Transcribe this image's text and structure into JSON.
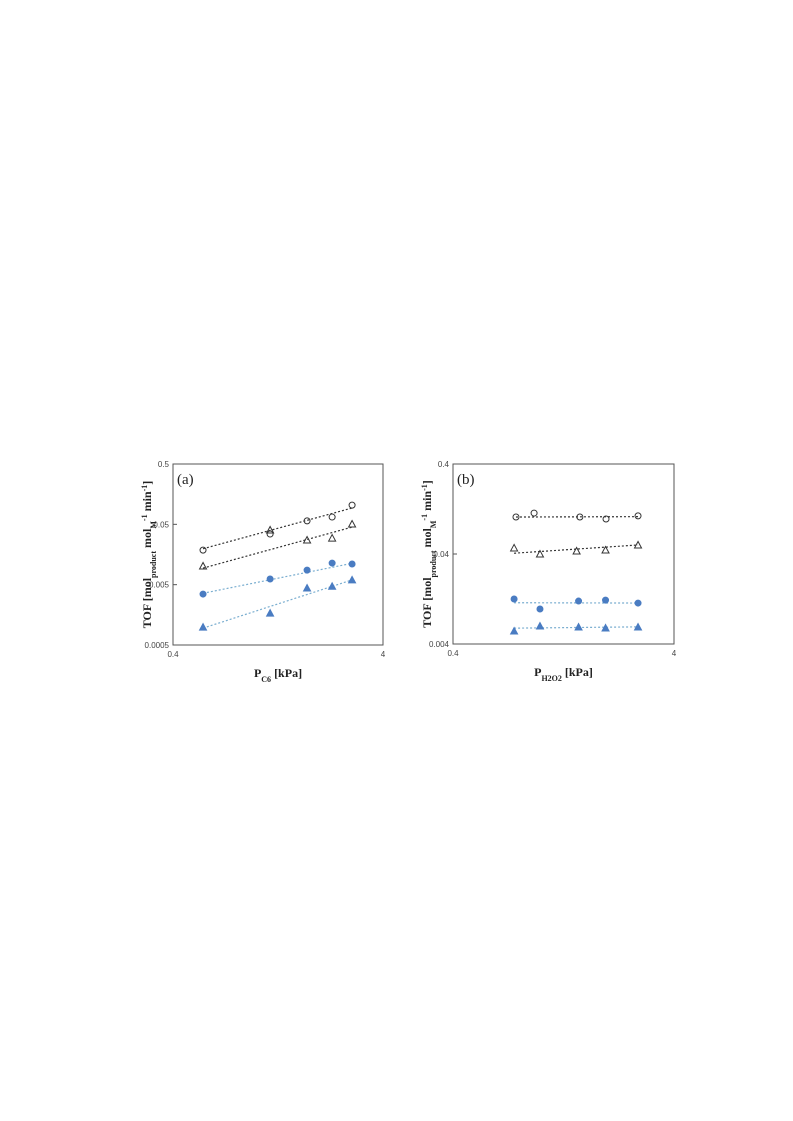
{
  "chart_data": [
    {
      "type": "scatter",
      "annotation": "(a)",
      "log_x": true,
      "log_y": true,
      "xlabel": [
        {
          "text": "P",
          "style": "base"
        },
        {
          "text": "C6",
          "style": "sub"
        },
        {
          "text": " [kPa]",
          "style": "base"
        }
      ],
      "ylabel": [
        {
          "text": "TOF [mol",
          "style": "base"
        },
        {
          "text": "product",
          "style": "sub"
        },
        {
          "text": " mol",
          "style": "base"
        },
        {
          "text": "M",
          "style": "sub"
        },
        {
          "text": "-1",
          "style": "super"
        },
        {
          "text": " min",
          "style": "base"
        },
        {
          "text": "-1",
          "style": "super"
        },
        {
          "text": "]",
          "style": "base"
        }
      ],
      "xlim": [
        0.4,
        4
      ],
      "xticks": [
        0.4,
        4
      ],
      "ylim": [
        0.0005,
        0.5
      ],
      "yticks": [
        0.0005,
        0.005,
        0.05,
        0.5
      ],
      "series": [
        {
          "marker": "circle",
          "filled": false,
          "color": "#333333",
          "x": [
            0.556,
            1.16,
            1.74,
            2.29,
            2.85
          ],
          "values": [
            0.0187,
            0.0345,
            0.057,
            0.066,
            0.104
          ],
          "fit": {
            "color": "#333333",
            "x": [
              0.556,
              2.85
            ],
            "values": [
              0.0197,
              0.0932
            ]
          }
        },
        {
          "marker": "triangle",
          "filled": false,
          "color": "#333333",
          "x": [
            0.556,
            1.16,
            1.74,
            2.29,
            2.85
          ],
          "values": [
            0.0102,
            0.0403,
            0.0275,
            0.0296,
            0.0506
          ],
          "fit": {
            "color": "#333333",
            "x": [
              0.556,
              2.85
            ],
            "values": [
              0.0094,
              0.045
            ]
          }
        },
        {
          "marker": "circle",
          "filled": true,
          "color": "#4a7cc2",
          "x": [
            0.556,
            1.16,
            1.74,
            2.29,
            2.85
          ],
          "values": [
            0.00349,
            0.0062,
            0.0087,
            0.0114,
            0.011
          ],
          "fit": {
            "color": "#7aaed0",
            "x": [
              0.556,
              2.85
            ],
            "values": [
              0.0036,
              0.0113
            ]
          }
        },
        {
          "marker": "triangle",
          "filled": true,
          "color": "#4a7cc2",
          "x": [
            0.556,
            1.16,
            1.74,
            2.29,
            2.85
          ],
          "values": [
            0.00099,
            0.00169,
            0.0044,
            0.0047,
            0.006
          ],
          "fit": {
            "color": "#7aaed0",
            "x": [
              0.556,
              2.85
            ],
            "values": [
              0.00095,
              0.006
            ]
          }
        }
      ]
    },
    {
      "type": "scatter",
      "annotation": "(b)",
      "log_x": true,
      "log_y": true,
      "xlabel": [
        {
          "text": "P",
          "style": "base"
        },
        {
          "text": "H2O2",
          "style": "sub"
        },
        {
          "text": " [kPa]",
          "style": "base"
        }
      ],
      "ylabel": [
        {
          "text": "TOF [mol",
          "style": "base"
        },
        {
          "text": "product",
          "style": "sub"
        },
        {
          "text": " mol",
          "style": "base"
        },
        {
          "text": "M",
          "style": "sub"
        },
        {
          "text": "-1",
          "style": "super"
        },
        {
          "text": " min",
          "style": "base"
        },
        {
          "text": "-1",
          "style": "super"
        },
        {
          "text": "]",
          "style": "base"
        }
      ],
      "xlim": [
        0.4,
        4
      ],
      "xticks": [
        0.4,
        4
      ],
      "ylim": [
        0.004,
        0.4
      ],
      "yticks": [
        0.004,
        0.04,
        0.4
      ],
      "series": [
        {
          "marker": "circle",
          "filled": false,
          "color": "#333333",
          "x": [
            0.771,
            0.931,
            1.5,
            1.97,
            2.75
          ],
          "values": [
            0.103,
            0.114,
            0.103,
            0.098,
            0.106
          ],
          "fit": {
            "color": "#333333",
            "x": [
              0.771,
              2.75
            ],
            "values": [
              0.103,
              0.104
            ]
          }
        },
        {
          "marker": "triangle",
          "filled": false,
          "color": "#333333",
          "x": [
            0.756,
            0.99,
            1.45,
            1.96,
            2.75
          ],
          "values": [
            0.0467,
            0.04,
            0.0432,
            0.0443,
            0.0504
          ],
          "fit": {
            "color": "#333333",
            "x": [
              0.756,
              2.75
            ],
            "values": [
              0.0408,
              0.0504
            ]
          }
        },
        {
          "marker": "circle",
          "filled": true,
          "color": "#4a7cc2",
          "x": [
            0.756,
            0.99,
            1.48,
            1.96,
            2.75
          ],
          "values": [
            0.01265,
            0.0098,
            0.012,
            0.0123,
            0.0114
          ],
          "fit": {
            "color": "#7aaed0",
            "x": [
              0.756,
              2.75
            ],
            "values": [
              0.0115,
              0.0114
            ]
          }
        },
        {
          "marker": "triangle",
          "filled": true,
          "color": "#4a7cc2",
          "x": [
            0.756,
            0.99,
            1.48,
            1.96,
            2.75
          ],
          "values": [
            0.00557,
            0.00634,
            0.00618,
            0.00603,
            0.00618
          ],
          "fit": {
            "color": "#7aaed0",
            "x": [
              0.756,
              2.75
            ],
            "values": [
              0.006,
              0.0062
            ]
          }
        }
      ]
    }
  ]
}
